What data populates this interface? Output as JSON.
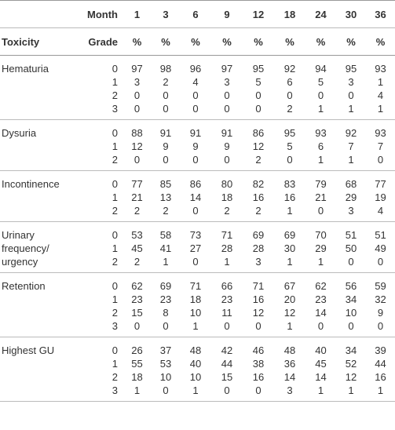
{
  "header": {
    "month_label": "Month",
    "months": [
      1,
      3,
      6,
      9,
      12,
      18,
      24,
      30,
      36
    ],
    "toxicity_label": "Toxicity",
    "grade_label": "Grade",
    "percent_labels": [
      "%",
      "%",
      "%",
      "%",
      "%",
      "%",
      "%",
      "%",
      "%"
    ]
  },
  "groups": [
    {
      "name": "Hematuria",
      "rows": [
        {
          "grade": 0,
          "values": [
            97,
            98,
            96,
            97,
            95,
            92,
            94,
            95,
            93
          ]
        },
        {
          "grade": 1,
          "values": [
            3,
            2,
            4,
            3,
            5,
            6,
            5,
            3,
            1
          ]
        },
        {
          "grade": 2,
          "values": [
            0,
            0,
            0,
            0,
            0,
            0,
            0,
            0,
            4
          ]
        },
        {
          "grade": 3,
          "values": [
            0,
            0,
            0,
            0,
            0,
            2,
            1,
            1,
            1
          ]
        }
      ]
    },
    {
      "name": "Dysuria",
      "rows": [
        {
          "grade": 0,
          "values": [
            88,
            91,
            91,
            91,
            86,
            95,
            93,
            92,
            93
          ]
        },
        {
          "grade": 1,
          "values": [
            12,
            9,
            9,
            9,
            12,
            5,
            6,
            7,
            7
          ]
        },
        {
          "grade": 2,
          "values": [
            0,
            0,
            0,
            0,
            2,
            0,
            1,
            1,
            0
          ]
        }
      ]
    },
    {
      "name": "Incontinence",
      "rows": [
        {
          "grade": 0,
          "values": [
            77,
            85,
            86,
            80,
            82,
            83,
            79,
            68,
            77
          ]
        },
        {
          "grade": 1,
          "values": [
            21,
            13,
            14,
            18,
            16,
            16,
            21,
            29,
            19
          ]
        },
        {
          "grade": 2,
          "values": [
            2,
            2,
            0,
            2,
            2,
            1,
            0,
            3,
            4
          ]
        }
      ]
    },
    {
      "name": "Urinary frequency/ urgency",
      "rows": [
        {
          "grade": 0,
          "values": [
            53,
            58,
            73,
            71,
            69,
            69,
            70,
            51,
            51
          ]
        },
        {
          "grade": 1,
          "values": [
            45,
            41,
            27,
            28,
            28,
            30,
            29,
            50,
            49
          ]
        },
        {
          "grade": 2,
          "values": [
            2,
            1,
            0,
            1,
            3,
            1,
            1,
            0,
            0
          ]
        }
      ]
    },
    {
      "name": "Retention",
      "rows": [
        {
          "grade": 0,
          "values": [
            62,
            69,
            71,
            66,
            71,
            67,
            62,
            56,
            59
          ]
        },
        {
          "grade": 1,
          "values": [
            23,
            23,
            18,
            23,
            16,
            20,
            23,
            34,
            32
          ]
        },
        {
          "grade": 2,
          "values": [
            15,
            8,
            10,
            11,
            12,
            12,
            14,
            10,
            9
          ]
        },
        {
          "grade": 3,
          "values": [
            0,
            0,
            1,
            0,
            0,
            1,
            0,
            0,
            0
          ]
        }
      ]
    },
    {
      "name": "Highest GU",
      "rows": [
        {
          "grade": 0,
          "values": [
            26,
            37,
            48,
            42,
            46,
            48,
            40,
            34,
            39
          ]
        },
        {
          "grade": 1,
          "values": [
            55,
            53,
            40,
            44,
            38,
            36,
            45,
            52,
            44
          ]
        },
        {
          "grade": 2,
          "values": [
            18,
            10,
            10,
            15,
            16,
            14,
            14,
            12,
            16
          ]
        },
        {
          "grade": 3,
          "values": [
            1,
            0,
            1,
            0,
            0,
            3,
            1,
            1,
            1
          ]
        }
      ]
    }
  ]
}
